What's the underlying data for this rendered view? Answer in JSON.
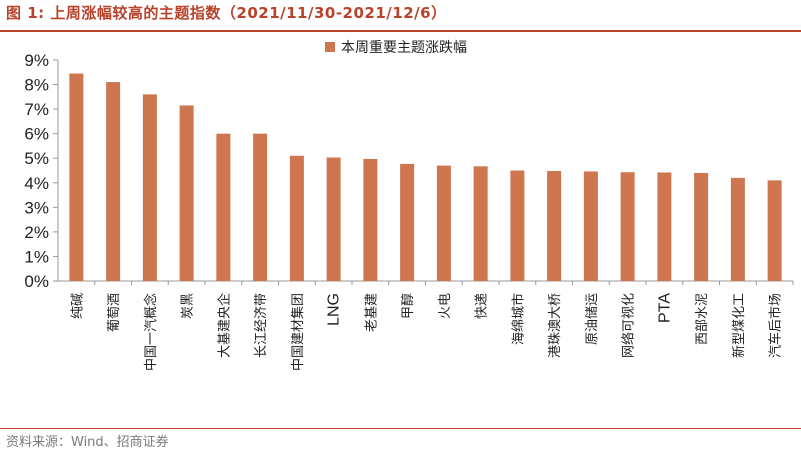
{
  "header": {
    "title": "图 1:  上周涨幅较高的主题指数（2021/11/30-2021/12/6）"
  },
  "footer": {
    "source": "资料来源：Wind、招商证券"
  },
  "colors": {
    "bar": "#cd7650",
    "accent": "#b8432a",
    "axis": "#999999"
  },
  "chart_data": {
    "type": "bar",
    "title": "",
    "xlabel": "",
    "ylabel": "",
    "ylim": [
      0,
      9
    ],
    "yticks": [
      "0%",
      "1%",
      "2%",
      "3%",
      "4%",
      "5%",
      "6%",
      "7%",
      "8%",
      "9%"
    ],
    "grid": false,
    "legend_position": "top",
    "series": [
      {
        "name": "本周重要主题涨跌幅",
        "values": [
          8.45,
          8.1,
          7.6,
          7.15,
          6.0,
          6.0,
          5.1,
          5.03,
          4.97,
          4.77,
          4.7,
          4.67,
          4.5,
          4.48,
          4.46,
          4.43,
          4.42,
          4.4,
          4.2,
          4.1
        ]
      }
    ],
    "categories": [
      "纯碱",
      "葡萄酒",
      "中国一汽概念",
      "炭黑",
      "大基建央企",
      "长江经济带",
      "中国建材集团",
      "LNG",
      "老基建",
      "甲醇",
      "火电",
      "快递",
      "海绵城市",
      "港珠澳大桥",
      "原油储运",
      "网络可视化",
      "PTA",
      "西部水泥",
      "新型煤化工",
      "汽车后市场"
    ]
  }
}
